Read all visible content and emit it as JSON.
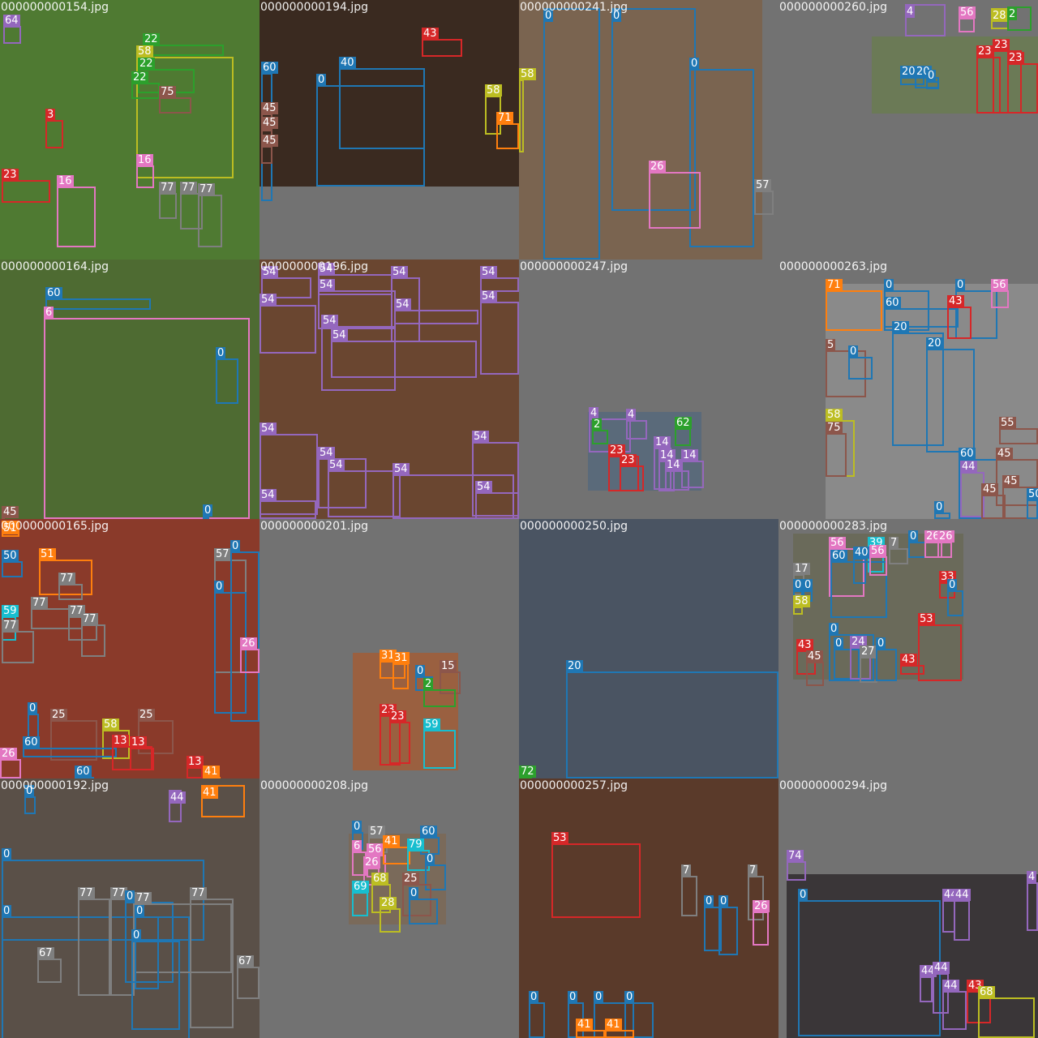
{
  "class_colors": {
    "0": "#1f77b4",
    "2": "#2ca02c",
    "3": "#d62728",
    "4": "#9467bd",
    "5": "#8c564b",
    "6": "#e377c2",
    "7": "#7f7f7f",
    "13": "#d62728",
    "14": "#9467bd",
    "15": "#8c564b",
    "16": "#e377c2",
    "17": "#7f7f7f",
    "20": "#1f77b4",
    "22": "#2ca02c",
    "23": "#d62728",
    "24": "#9467bd",
    "25": "#8c564b",
    "26": "#e377c2",
    "27": "#7f7f7f",
    "28": "#bcbd22",
    "31": "#ff7f0e",
    "33": "#d62728",
    "39": "#17becf",
    "40": "#1f77b4",
    "41": "#ff7f0e",
    "43": "#d62728",
    "44": "#9467bd",
    "45": "#8c564b",
    "51": "#ff7f0e",
    "53": "#d62728",
    "54": "#9467bd",
    "55": "#8c564b",
    "56": "#e377c2",
    "57": "#7f7f7f",
    "58": "#bcbd22",
    "59": "#17becf",
    "60": "#1f77b4",
    "62": "#2ca02c",
    "64": "#9467bd",
    "67": "#7f7f7f",
    "68": "#bcbd22",
    "69": "#17becf",
    "71": "#ff7f0e",
    "72": "#2ca02c",
    "74": "#9467bd",
    "75": "#8c564b",
    "77": "#7f7f7f",
    "79": "#17becf"
  },
  "tiles": [
    {
      "filename": "000000000154.jpg",
      "photo_color": "#4f7a32",
      "boxes": [
        {
          "label": "64"
        },
        {
          "label": "22"
        },
        {
          "label": "58"
        },
        {
          "label": "22"
        },
        {
          "label": "22"
        },
        {
          "label": "75"
        },
        {
          "label": "3"
        },
        {
          "label": "23"
        },
        {
          "label": "16"
        },
        {
          "label": "16"
        },
        {
          "label": "77"
        },
        {
          "label": "77"
        },
        {
          "label": "77"
        }
      ]
    },
    {
      "filename": "000000000194.jpg",
      "photo_color": "#3a2a20",
      "boxes": [
        {
          "label": "43"
        },
        {
          "label": "60"
        },
        {
          "label": "40"
        },
        {
          "label": "0"
        },
        {
          "label": "58"
        },
        {
          "label": "71"
        },
        {
          "label": "45"
        },
        {
          "label": "45"
        },
        {
          "label": "45"
        }
      ]
    },
    {
      "filename": "000000000241.jpg",
      "photo_color": "#7a6450",
      "boxes": [
        {
          "label": "58"
        },
        {
          "label": "0"
        },
        {
          "label": "0"
        },
        {
          "label": "0"
        },
        {
          "label": "26"
        },
        {
          "label": "57"
        }
      ]
    },
    {
      "filename": "000000000260.jpg",
      "photo_color": "#6b7a56",
      "boxes": [
        {
          "label": "4"
        },
        {
          "label": "56"
        },
        {
          "label": "28"
        },
        {
          "label": "2"
        },
        {
          "label": "20"
        },
        {
          "label": "20"
        },
        {
          "label": "0"
        },
        {
          "label": "23"
        },
        {
          "label": "23"
        },
        {
          "label": "23"
        }
      ]
    },
    {
      "filename": "000000000164.jpg",
      "photo_color": "#4e6b32",
      "boxes": [
        {
          "label": "60"
        },
        {
          "label": "6"
        },
        {
          "label": "0"
        },
        {
          "label": "45"
        },
        {
          "label": "0"
        }
      ]
    },
    {
      "filename": "000000000196.jpg",
      "photo_color": "#6a4630",
      "boxes": [
        {
          "label": "54"
        },
        {
          "label": "54"
        },
        {
          "label": "54"
        },
        {
          "label": "54"
        },
        {
          "label": "54"
        },
        {
          "label": "54"
        },
        {
          "label": "54"
        },
        {
          "label": "54"
        },
        {
          "label": "54"
        },
        {
          "label": "54"
        },
        {
          "label": "54"
        },
        {
          "label": "54"
        },
        {
          "label": "54"
        },
        {
          "label": "54"
        },
        {
          "label": "54"
        },
        {
          "label": "54"
        },
        {
          "label": "54"
        }
      ]
    },
    {
      "filename": "000000000247.jpg",
      "photo_color": "#5a6a7a",
      "boxes": [
        {
          "label": "4"
        },
        {
          "label": "4"
        },
        {
          "label": "2"
        },
        {
          "label": "62"
        },
        {
          "label": "23"
        },
        {
          "label": "23"
        },
        {
          "label": "14"
        },
        {
          "label": "14"
        },
        {
          "label": "14"
        },
        {
          "label": "14"
        }
      ]
    },
    {
      "filename": "000000000263.jpg",
      "photo_color": "#8a8a8a",
      "boxes": [
        {
          "label": "71"
        },
        {
          "label": "0"
        },
        {
          "label": "0"
        },
        {
          "label": "56"
        },
        {
          "label": "60"
        },
        {
          "label": "43"
        },
        {
          "label": "20"
        },
        {
          "label": "20"
        },
        {
          "label": "5"
        },
        {
          "label": "0"
        },
        {
          "label": "58"
        },
        {
          "label": "75"
        },
        {
          "label": "60"
        },
        {
          "label": "45"
        },
        {
          "label": "44"
        },
        {
          "label": "45"
        },
        {
          "label": "55"
        },
        {
          "label": "45"
        },
        {
          "label": "0"
        },
        {
          "label": "50"
        }
      ]
    },
    {
      "filename": "000000000165.jpg",
      "photo_color": "#8a3a2a",
      "boxes": [
        {
          "label": "51"
        },
        {
          "label": "50"
        },
        {
          "label": "51"
        },
        {
          "label": "77"
        },
        {
          "label": "77"
        },
        {
          "label": "77"
        },
        {
          "label": "59"
        },
        {
          "label": "77"
        },
        {
          "label": "77"
        },
        {
          "label": "57"
        },
        {
          "label": "0"
        },
        {
          "label": "0"
        },
        {
          "label": "26"
        },
        {
          "label": "0"
        },
        {
          "label": "25"
        },
        {
          "label": "25"
        },
        {
          "label": "58"
        },
        {
          "label": "60"
        },
        {
          "label": "13"
        },
        {
          "label": "13"
        },
        {
          "label": "26"
        },
        {
          "label": "60"
        },
        {
          "label": "13"
        },
        {
          "label": "41"
        }
      ]
    },
    {
      "filename": "000000000201.jpg",
      "photo_color": "#9a6040",
      "boxes": [
        {
          "label": "31"
        },
        {
          "label": "31"
        },
        {
          "label": "15"
        },
        {
          "label": "0"
        },
        {
          "label": "2"
        },
        {
          "label": "23"
        },
        {
          "label": "23"
        },
        {
          "label": "59"
        }
      ]
    },
    {
      "filename": "000000000250.jpg",
      "photo_color": "#4a5462",
      "boxes": [
        {
          "label": "20"
        },
        {
          "label": "72"
        }
      ]
    },
    {
      "filename": "000000000283.jpg",
      "photo_color": "#6a6a5a",
      "boxes": [
        {
          "label": "56"
        },
        {
          "label": "39"
        },
        {
          "label": "7"
        },
        {
          "label": "0"
        },
        {
          "label": "26"
        },
        {
          "label": "26"
        },
        {
          "label": "60"
        },
        {
          "label": "40"
        },
        {
          "label": "56"
        },
        {
          "label": "17"
        },
        {
          "label": "0"
        },
        {
          "label": "0"
        },
        {
          "label": "58"
        },
        {
          "label": "33"
        },
        {
          "label": "0"
        },
        {
          "label": "53"
        },
        {
          "label": "43"
        },
        {
          "label": "45"
        },
        {
          "label": "0"
        },
        {
          "label": "0"
        },
        {
          "label": "24"
        },
        {
          "label": "27"
        },
        {
          "label": "0"
        },
        {
          "label": "43"
        }
      ]
    },
    {
      "filename": "000000000192.jpg",
      "photo_color": "#5a5048",
      "boxes": [
        {
          "label": "41"
        },
        {
          "label": "44"
        },
        {
          "label": "0"
        },
        {
          "label": "0"
        },
        {
          "label": "0"
        },
        {
          "label": "77"
        },
        {
          "label": "77"
        },
        {
          "label": "0"
        },
        {
          "label": "77"
        },
        {
          "label": "0"
        },
        {
          "label": "77"
        },
        {
          "label": "0"
        },
        {
          "label": "67"
        },
        {
          "label": "67"
        }
      ]
    },
    {
      "filename": "000000000208.jpg",
      "photo_color": "#7a6a5a",
      "boxes": [
        {
          "label": "0"
        },
        {
          "label": "57"
        },
        {
          "label": "60"
        },
        {
          "label": "6"
        },
        {
          "label": "56"
        },
        {
          "label": "41"
        },
        {
          "label": "79"
        },
        {
          "label": "26"
        },
        {
          "label": "0"
        },
        {
          "label": "68"
        },
        {
          "label": "25"
        },
        {
          "label": "69"
        },
        {
          "label": "28"
        },
        {
          "label": "0"
        }
      ]
    },
    {
      "filename": "000000000257.jpg",
      "photo_color": "#5a3a2a",
      "boxes": [
        {
          "label": "53"
        },
        {
          "label": "7"
        },
        {
          "label": "7"
        },
        {
          "label": "0"
        },
        {
          "label": "0"
        },
        {
          "label": "26"
        },
        {
          "label": "0"
        },
        {
          "label": "0"
        },
        {
          "label": "0"
        },
        {
          "label": "0"
        },
        {
          "label": "41"
        },
        {
          "label": "41"
        }
      ]
    },
    {
      "filename": "000000000294.jpg",
      "photo_color": "#3a3638",
      "boxes": [
        {
          "label": "74"
        },
        {
          "label": "0"
        },
        {
          "label": "44"
        },
        {
          "label": "44"
        },
        {
          "label": "44"
        },
        {
          "label": "44"
        },
        {
          "label": "44"
        },
        {
          "label": "43"
        },
        {
          "label": "68"
        },
        {
          "label": "4"
        }
      ]
    }
  ]
}
